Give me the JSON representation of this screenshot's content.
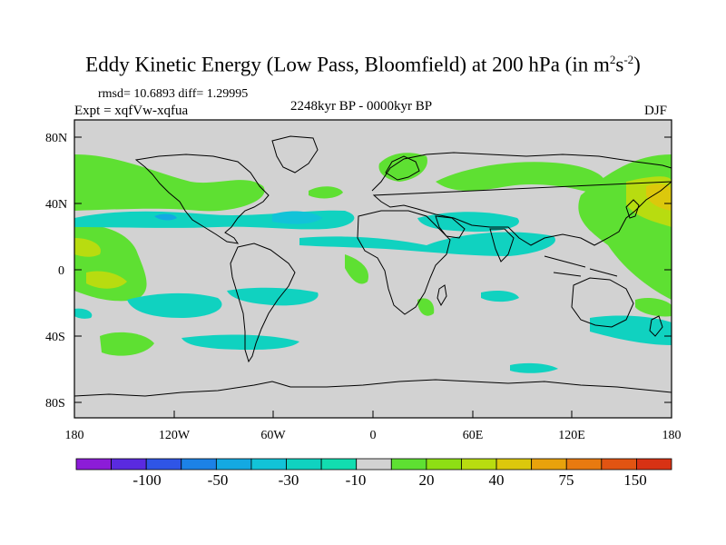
{
  "title": {
    "text": "Eddy Kinetic Energy (Low Pass, Bloomfield) at 200 hPa (in m",
    "sup1": "2",
    "mid": "s",
    "sup2": "-2",
    "end": ")"
  },
  "stats": "rmsd= 10.6893 diff= 1.29995",
  "experiment": "Expt = xqfVw-xqfua",
  "period": "2248kyr BP - 0000kyr BP",
  "season": "DJF",
  "chart_data": {
    "type": "heatmap",
    "lat_ticks": [
      "80N",
      "40N",
      "0",
      "40S",
      "80S"
    ],
    "lon_ticks": [
      "180",
      "120W",
      "60W",
      "0",
      "60E",
      "120E",
      "180"
    ],
    "colorbar": {
      "labels": [
        "-100",
        "-50",
        "-30",
        "-10",
        "20",
        "40",
        "75",
        "150"
      ],
      "colors": [
        "#8c1cd8",
        "#5a2ae0",
        "#2f55e6",
        "#1c82e6",
        "#14a9e2",
        "#12c3d8",
        "#10d2c0",
        "#12ddb0",
        "#d2d2d2",
        "#5ee032",
        "#8ede14",
        "#b8dc10",
        "#dcc80c",
        "#e8a20c",
        "#e87a10",
        "#e25412",
        "#d83214"
      ]
    },
    "regions": [
      {
        "name": "north-atlantic-positive",
        "color": "#8ede14"
      },
      {
        "name": "north-pacific-positive",
        "color": "#dcc80c"
      },
      {
        "name": "tropical-pacific-negative",
        "color": "#10d2c0"
      },
      {
        "name": "atlantic-negative",
        "color": "#14a9e2"
      },
      {
        "name": "southern-ocean-negative",
        "color": "#12ddb0"
      }
    ]
  }
}
